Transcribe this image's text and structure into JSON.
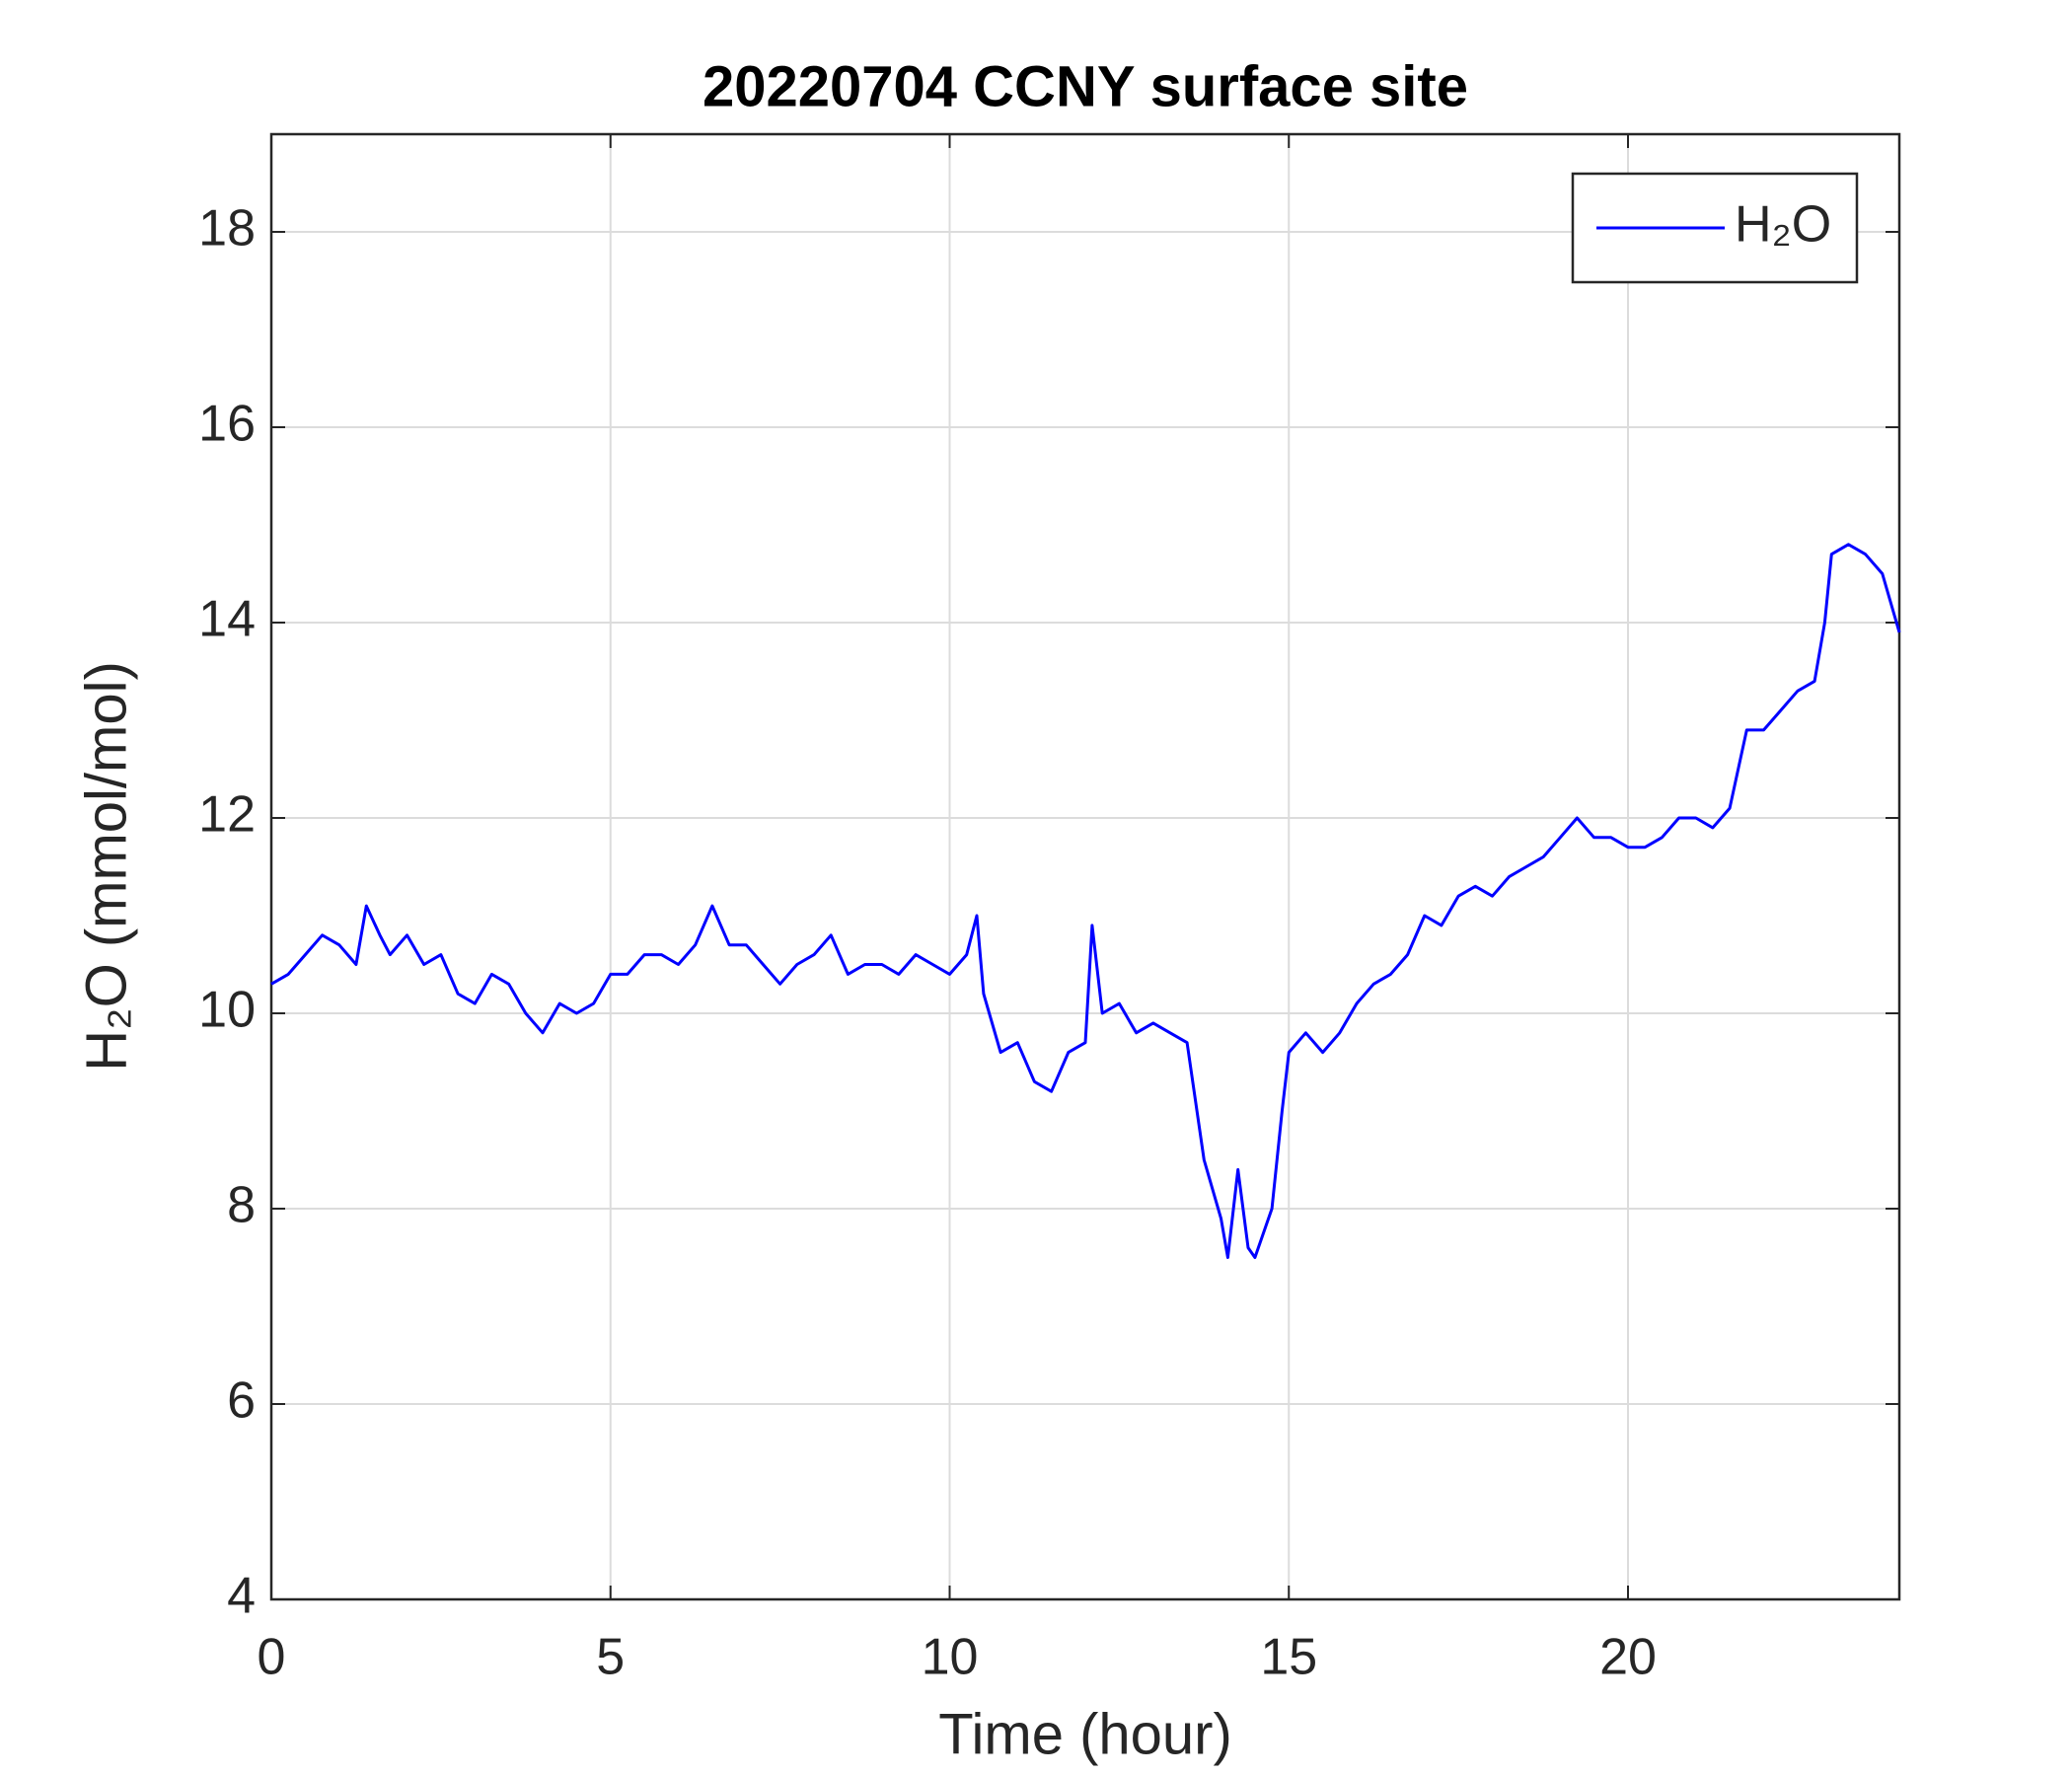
{
  "chart_data": {
    "type": "line",
    "title": "20220704 CCNY surface site",
    "xlabel": "Time (hour)",
    "ylabel": "H₂O (mmol/mol)",
    "xlim": [
      0,
      24
    ],
    "xticks": [
      0,
      5,
      10,
      15,
      20
    ],
    "ylim": [
      4,
      19
    ],
    "yticks": [
      4,
      6,
      8,
      10,
      12,
      14,
      16,
      18
    ],
    "grid": true,
    "legend": "upper right",
    "x": [
      0,
      0.25,
      0.5,
      0.75,
      1,
      1.25,
      1.4,
      1.6,
      1.75,
      2,
      2.25,
      2.5,
      2.75,
      3,
      3.25,
      3.5,
      3.75,
      4,
      4.25,
      4.5,
      4.75,
      5,
      5.25,
      5.5,
      5.75,
      6,
      6.25,
      6.5,
      6.75,
      7,
      7.25,
      7.5,
      7.75,
      8,
      8.25,
      8.5,
      8.75,
      9,
      9.25,
      9.5,
      9.75,
      10,
      10.25,
      10.4,
      10.5,
      10.75,
      11,
      11.25,
      11.5,
      11.75,
      12,
      12.1,
      12.25,
      12.5,
      12.75,
      13,
      13.25,
      13.5,
      13.75,
      14,
      14.1,
      14.25,
      14.4,
      14.5,
      14.75,
      14.9,
      15,
      15.25,
      15.5,
      15.75,
      16,
      16.25,
      16.5,
      16.75,
      17,
      17.25,
      17.5,
      17.75,
      18,
      18.25,
      18.5,
      18.75,
      19,
      19.25,
      19.5,
      19.75,
      20,
      20.25,
      20.5,
      20.75,
      21,
      21.25,
      21.5,
      21.75,
      22,
      22.25,
      22.5,
      22.75,
      22.9,
      23,
      23.25,
      23.5,
      23.75,
      24
    ],
    "series": [
      {
        "name": "H₂O",
        "color": "#0000ff",
        "values": [
          10.3,
          10.4,
          10.6,
          10.8,
          10.7,
          10.5,
          11.1,
          10.8,
          10.6,
          10.8,
          10.5,
          10.6,
          10.2,
          10.1,
          10.4,
          10.3,
          10.0,
          9.8,
          10.1,
          10.0,
          10.1,
          10.4,
          10.4,
          10.6,
          10.6,
          10.5,
          10.7,
          11.1,
          10.7,
          10.7,
          10.5,
          10.3,
          10.5,
          10.6,
          10.8,
          10.4,
          10.5,
          10.5,
          10.4,
          10.6,
          10.5,
          10.4,
          10.6,
          11.0,
          10.2,
          9.6,
          9.7,
          9.3,
          9.2,
          9.6,
          9.7,
          10.9,
          10.0,
          10.1,
          9.8,
          9.9,
          9.8,
          9.7,
          8.5,
          7.9,
          7.5,
          8.4,
          7.6,
          7.5,
          8.0,
          9.0,
          9.6,
          9.8,
          9.6,
          9.8,
          10.1,
          10.3,
          10.4,
          10.6,
          11.0,
          10.9,
          11.2,
          11.3,
          11.2,
          11.4,
          11.5,
          11.6,
          11.8,
          12.0,
          11.8,
          11.8,
          11.7,
          11.7,
          11.8,
          12.0,
          12.0,
          11.9,
          12.1,
          12.9,
          12.9,
          13.1,
          13.3,
          13.4,
          14.0,
          14.7,
          14.8,
          14.7,
          14.5,
          13.9
        ]
      }
    ]
  }
}
